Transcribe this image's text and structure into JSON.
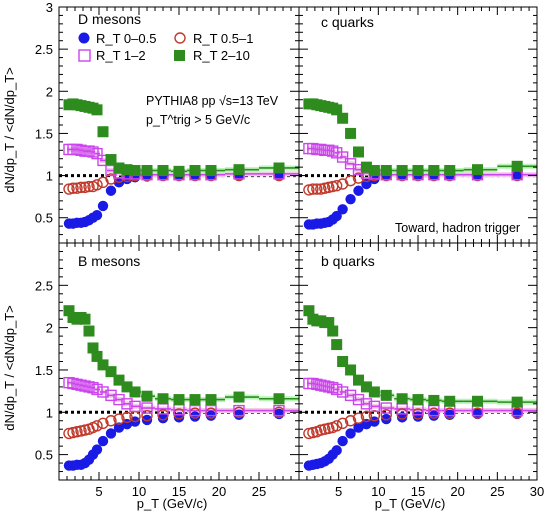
{
  "chart_data": {
    "type": "scatter",
    "info_line1": "PYTHIA8 pp √s=13 TeV",
    "info_line2": "p_T^trig > 5 GeV/c",
    "corner_label": "Toward, hadron trigger",
    "xlabel": "p_T (GeV/c)",
    "ylabel": "dN/dp_T / <dN/dp_T>",
    "xlim": [
      0,
      30
    ],
    "ylim": [
      0.2,
      3.0
    ],
    "x_ticks": [
      5,
      10,
      15,
      20,
      25,
      30
    ],
    "y_ticks": [
      0.5,
      1,
      1.5,
      2,
      2.5,
      3
    ],
    "reference_line": 1,
    "colors": {
      "rt_0_05": "#1a1ae6",
      "rt_05_1": "#c0392b",
      "rt_1_2": "#cc44ee",
      "rt_2_10": "#2e8b1e",
      "band_2_10": "#b8f5b8",
      "band_1_2": "#f2cce8"
    },
    "series_names": [
      "R_T 0–0.5",
      "R_T 0.5–1",
      "R_T 1–2",
      "R_T 2–10"
    ],
    "x": [
      1.25,
      1.75,
      2.25,
      2.75,
      3.25,
      3.75,
      4.25,
      4.75,
      5.5,
      6.5,
      7.5,
      8.5,
      9.5,
      11,
      13,
      15,
      17,
      19,
      22.5,
      27.5
    ],
    "panels": [
      {
        "label": "D mesons",
        "series": [
          {
            "name": "R_T 0–0.5",
            "values": [
              0.43,
              0.43,
              0.44,
              0.44,
              0.45,
              0.47,
              0.5,
              0.53,
              0.64,
              0.82,
              0.92,
              0.96,
              0.98,
              0.99,
              1.0,
              1.0,
              1.0,
              1.0,
              1.0,
              1.0
            ]
          },
          {
            "name": "R_T 0.5–1",
            "values": [
              0.84,
              0.85,
              0.85,
              0.86,
              0.86,
              0.87,
              0.87,
              0.89,
              0.92,
              0.96,
              0.98,
              0.99,
              1.0,
              1.0,
              1.0,
              1.0,
              1.0,
              1.0,
              1.0,
              1.0
            ]
          },
          {
            "name": "R_T 1–2",
            "values": [
              1.31,
              1.31,
              1.31,
              1.3,
              1.29,
              1.29,
              1.28,
              1.26,
              1.18,
              1.06,
              1.03,
              1.02,
              1.02,
              1.01,
              1.01,
              1.01,
              1.01,
              1.01,
              1.02,
              1.02
            ]
          },
          {
            "name": "R_T 2–10",
            "values": [
              1.84,
              1.85,
              1.84,
              1.83,
              1.82,
              1.81,
              1.8,
              1.78,
              1.52,
              1.19,
              1.09,
              1.07,
              1.06,
              1.06,
              1.06,
              1.05,
              1.06,
              1.06,
              1.07,
              1.09
            ]
          }
        ]
      },
      {
        "label": "c quarks",
        "series": [
          {
            "name": "R_T 0–0.5",
            "values": [
              0.42,
              0.42,
              0.43,
              0.43,
              0.44,
              0.45,
              0.48,
              0.52,
              0.6,
              0.72,
              0.82,
              0.9,
              0.96,
              1.0,
              1.0,
              1.0,
              1.0,
              1.0,
              1.0,
              1.0
            ]
          },
          {
            "name": "R_T 0.5–1",
            "values": [
              0.83,
              0.84,
              0.84,
              0.84,
              0.85,
              0.86,
              0.87,
              0.88,
              0.9,
              0.94,
              0.97,
              0.99,
              1.0,
              1.0,
              1.0,
              1.0,
              1.0,
              1.0,
              1.0,
              1.0
            ]
          },
          {
            "name": "R_T 1–2",
            "values": [
              1.32,
              1.32,
              1.31,
              1.31,
              1.3,
              1.3,
              1.29,
              1.27,
              1.22,
              1.14,
              1.07,
              1.03,
              1.02,
              1.01,
              1.01,
              1.01,
              1.01,
              1.01,
              1.01,
              1.01
            ]
          },
          {
            "name": "R_T 2–10",
            "values": [
              1.85,
              1.85,
              1.84,
              1.83,
              1.82,
              1.81,
              1.8,
              1.78,
              1.68,
              1.5,
              1.28,
              1.1,
              1.06,
              1.06,
              1.06,
              1.06,
              1.06,
              1.06,
              1.07,
              1.11
            ]
          }
        ]
      },
      {
        "label": "B mesons",
        "series": [
          {
            "name": "R_T 0–0.5",
            "values": [
              0.37,
              0.37,
              0.38,
              0.38,
              0.4,
              0.44,
              0.5,
              0.56,
              0.66,
              0.75,
              0.82,
              0.86,
              0.89,
              0.91,
              0.93,
              0.94,
              0.95,
              0.96,
              0.97,
              0.98
            ]
          },
          {
            "name": "R_T 0.5–1",
            "values": [
              0.75,
              0.76,
              0.77,
              0.78,
              0.79,
              0.8,
              0.82,
              0.84,
              0.87,
              0.9,
              0.92,
              0.94,
              0.95,
              0.96,
              0.97,
              0.98,
              0.99,
              0.99,
              1.0,
              1.0
            ]
          },
          {
            "name": "R_T 1–2",
            "values": [
              1.35,
              1.34,
              1.33,
              1.32,
              1.31,
              1.3,
              1.29,
              1.27,
              1.24,
              1.2,
              1.15,
              1.1,
              1.07,
              1.05,
              1.04,
              1.03,
              1.02,
              1.02,
              1.02,
              1.02
            ]
          },
          {
            "name": "R_T 2–10",
            "values": [
              2.2,
              2.12,
              2.1,
              2.12,
              2.1,
              1.96,
              1.76,
              1.66,
              1.56,
              1.48,
              1.38,
              1.3,
              1.24,
              1.19,
              1.16,
              1.15,
              1.15,
              1.15,
              1.18,
              1.16
            ]
          }
        ]
      },
      {
        "label": "b quarks",
        "series": [
          {
            "name": "R_T 0–0.5",
            "values": [
              0.37,
              0.38,
              0.39,
              0.4,
              0.42,
              0.45,
              0.5,
              0.55,
              0.66,
              0.75,
              0.82,
              0.86,
              0.89,
              0.92,
              0.94,
              0.95,
              0.96,
              0.97,
              0.98,
              0.98
            ]
          },
          {
            "name": "R_T 0.5–1",
            "values": [
              0.75,
              0.76,
              0.77,
              0.79,
              0.8,
              0.81,
              0.82,
              0.84,
              0.87,
              0.9,
              0.93,
              0.95,
              0.96,
              0.97,
              0.98,
              0.98,
              0.99,
              0.99,
              0.99,
              0.99
            ]
          },
          {
            "name": "R_T 1–2",
            "values": [
              1.34,
              1.34,
              1.33,
              1.32,
              1.31,
              1.3,
              1.29,
              1.27,
              1.24,
              1.2,
              1.15,
              1.1,
              1.07,
              1.05,
              1.04,
              1.03,
              1.02,
              1.02,
              1.02,
              1.02
            ]
          },
          {
            "name": "R_T 2–10",
            "values": [
              2.2,
              2.1,
              2.08,
              2.08,
              2.06,
              2.06,
              1.96,
              1.8,
              1.6,
              1.5,
              1.38,
              1.3,
              1.24,
              1.2,
              1.16,
              1.15,
              1.14,
              1.13,
              1.13,
              1.12
            ]
          }
        ]
      }
    ]
  }
}
